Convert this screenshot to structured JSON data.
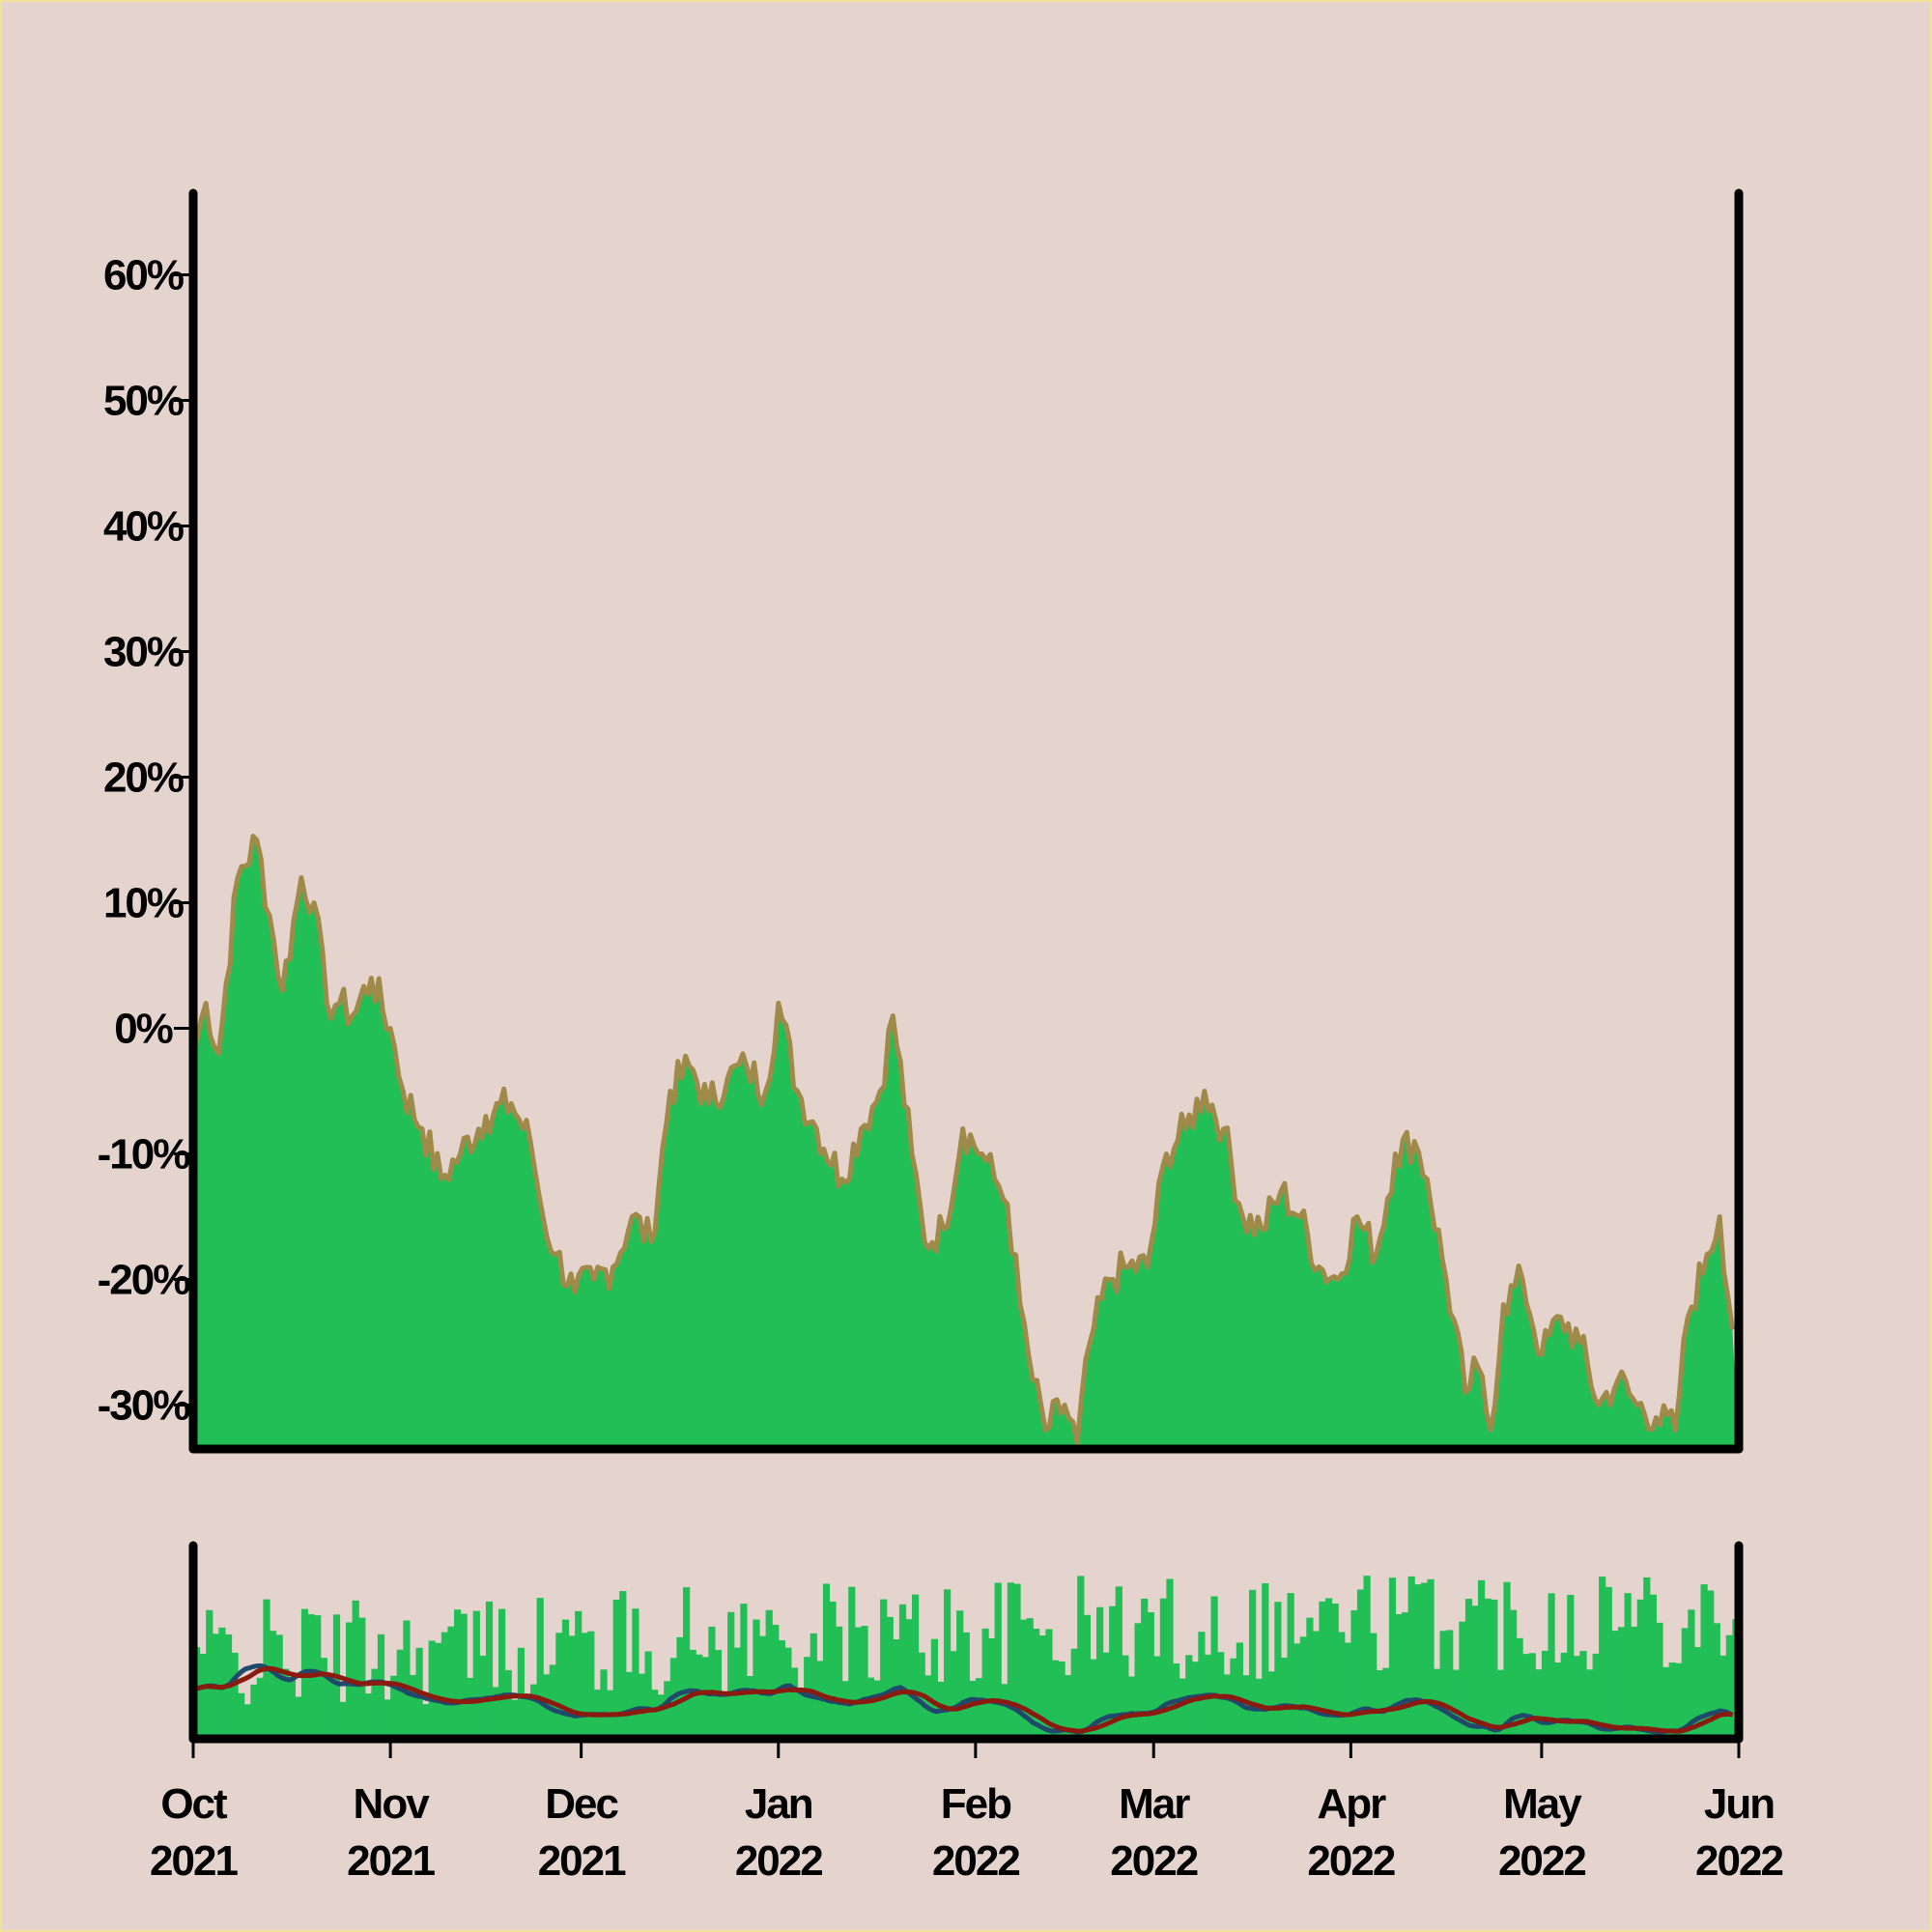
{
  "chart_data": {
    "type": "area",
    "colors": {
      "background": "#e4d4cd",
      "border": "#f0e39a",
      "area_fill": "#21bf56",
      "area_line": "#a08a4a",
      "axis": "#000000",
      "volume_bars": "#21bf56",
      "ma_fast": "#1f4a6e",
      "ma_slow": "#8b1a10"
    },
    "y_axis": {
      "ticks": [
        60,
        50,
        40,
        30,
        20,
        10,
        0,
        -10,
        -20,
        -30
      ],
      "tick_labels": [
        "60%",
        "50%",
        "40%",
        "30%",
        "20%",
        "10%",
        "0%",
        "-10%",
        "-20%",
        "-30%"
      ],
      "range": [
        -33.5,
        66.5
      ],
      "unit": "%"
    },
    "x_axis": {
      "range": [
        "2021-10-01",
        "2022-06-01"
      ],
      "ticks": [
        {
          "month": "Oct",
          "year": "2021",
          "date": "2021-10-01"
        },
        {
          "month": "Nov",
          "year": "2021",
          "date": "2021-11-01"
        },
        {
          "month": "Dec",
          "year": "2021",
          "date": "2021-12-01"
        },
        {
          "month": "Jan",
          "year": "2022",
          "date": "2022-01-01"
        },
        {
          "month": "Feb",
          "year": "2022",
          "date": "2022-02-01"
        },
        {
          "month": "Mar",
          "year": "2022",
          "date": "2022-03-01"
        },
        {
          "month": "Apr",
          "year": "2022",
          "date": "2022-04-01"
        },
        {
          "month": "May",
          "year": "2022",
          "date": "2022-05-01"
        },
        {
          "month": "Jun",
          "year": "2022",
          "date": "2022-06-01"
        }
      ]
    },
    "series": [
      {
        "values_pct": [
          [
            "2021-10-01",
            -2
          ],
          [
            "2021-10-03",
            2
          ],
          [
            "2021-10-05",
            -2
          ],
          [
            "2021-10-08",
            12
          ],
          [
            "2021-10-11",
            15
          ],
          [
            "2021-10-13",
            9
          ],
          [
            "2021-10-15",
            3
          ],
          [
            "2021-10-18",
            12
          ],
          [
            "2021-10-20",
            10
          ],
          [
            "2021-10-22",
            2
          ],
          [
            "2021-10-24",
            2
          ],
          [
            "2021-10-26",
            1
          ],
          [
            "2021-10-29",
            4
          ],
          [
            "2021-11-01",
            0
          ],
          [
            "2021-11-03",
            -5
          ],
          [
            "2021-11-06",
            -8
          ],
          [
            "2021-11-09",
            -12
          ],
          [
            "2021-11-12",
            -10
          ],
          [
            "2021-11-16",
            -7
          ],
          [
            "2021-11-20",
            -6
          ],
          [
            "2021-11-23",
            -9
          ],
          [
            "2021-11-25",
            -15
          ],
          [
            "2021-11-27",
            -18
          ],
          [
            "2021-11-30",
            -21
          ],
          [
            "2021-12-03",
            -20
          ],
          [
            "2021-12-06",
            -19
          ],
          [
            "2021-12-09",
            -15
          ],
          [
            "2021-12-12",
            -17
          ],
          [
            "2021-12-15",
            -5
          ],
          [
            "2021-12-18",
            -3
          ],
          [
            "2021-12-21",
            -6
          ],
          [
            "2021-12-24",
            -4
          ],
          [
            "2021-12-27",
            -3
          ],
          [
            "2021-12-30",
            -5
          ],
          [
            "2022-01-01",
            2
          ],
          [
            "2022-01-04",
            -5
          ],
          [
            "2022-01-07",
            -8
          ],
          [
            "2022-01-11",
            -12
          ],
          [
            "2022-01-14",
            -8
          ],
          [
            "2022-01-17",
            -5
          ],
          [
            "2022-01-19",
            1
          ],
          [
            "2022-01-22",
            -10
          ],
          [
            "2022-01-24",
            -17
          ],
          [
            "2022-01-27",
            -16
          ],
          [
            "2022-01-30",
            -8
          ],
          [
            "2022-02-02",
            -10
          ],
          [
            "2022-02-04",
            -12
          ],
          [
            "2022-02-06",
            -14
          ],
          [
            "2022-02-08",
            -22
          ],
          [
            "2022-02-10",
            -28
          ],
          [
            "2022-02-12",
            -32
          ],
          [
            "2022-02-15",
            -30
          ],
          [
            "2022-02-17",
            -33
          ],
          [
            "2022-02-19",
            -25
          ],
          [
            "2022-02-22",
            -20
          ],
          [
            "2022-02-25",
            -19
          ],
          [
            "2022-02-28",
            -19
          ],
          [
            "2022-03-03",
            -10
          ],
          [
            "2022-03-06",
            -8
          ],
          [
            "2022-03-09",
            -5
          ],
          [
            "2022-03-12",
            -8
          ],
          [
            "2022-03-15",
            -15
          ],
          [
            "2022-03-18",
            -16
          ],
          [
            "2022-03-21",
            -13
          ],
          [
            "2022-03-24",
            -15
          ],
          [
            "2022-03-27",
            -19
          ],
          [
            "2022-03-30",
            -20
          ],
          [
            "2022-04-02",
            -15
          ],
          [
            "2022-04-05",
            -18
          ],
          [
            "2022-04-08",
            -10
          ],
          [
            "2022-04-11",
            -9
          ],
          [
            "2022-04-13",
            -12
          ],
          [
            "2022-04-16",
            -20
          ],
          [
            "2022-04-19",
            -29
          ],
          [
            "2022-04-21",
            -27
          ],
          [
            "2022-04-23",
            -32
          ],
          [
            "2022-04-25",
            -22
          ],
          [
            "2022-04-28",
            -20
          ],
          [
            "2022-05-01",
            -26
          ],
          [
            "2022-05-04",
            -23
          ],
          [
            "2022-05-07",
            -25
          ],
          [
            "2022-05-10",
            -30
          ],
          [
            "2022-05-13",
            -28
          ],
          [
            "2022-05-16",
            -30
          ],
          [
            "2022-05-19",
            -31
          ],
          [
            "2022-05-22",
            -32
          ],
          [
            "2022-05-24",
            -23
          ],
          [
            "2022-05-27",
            -18
          ],
          [
            "2022-05-29",
            -15
          ],
          [
            "2022-05-31",
            -24
          ]
        ]
      }
    ],
    "volume_panel": {
      "bars": "daily",
      "moving_averages": 2
    },
    "grid": false,
    "legend": "none"
  }
}
